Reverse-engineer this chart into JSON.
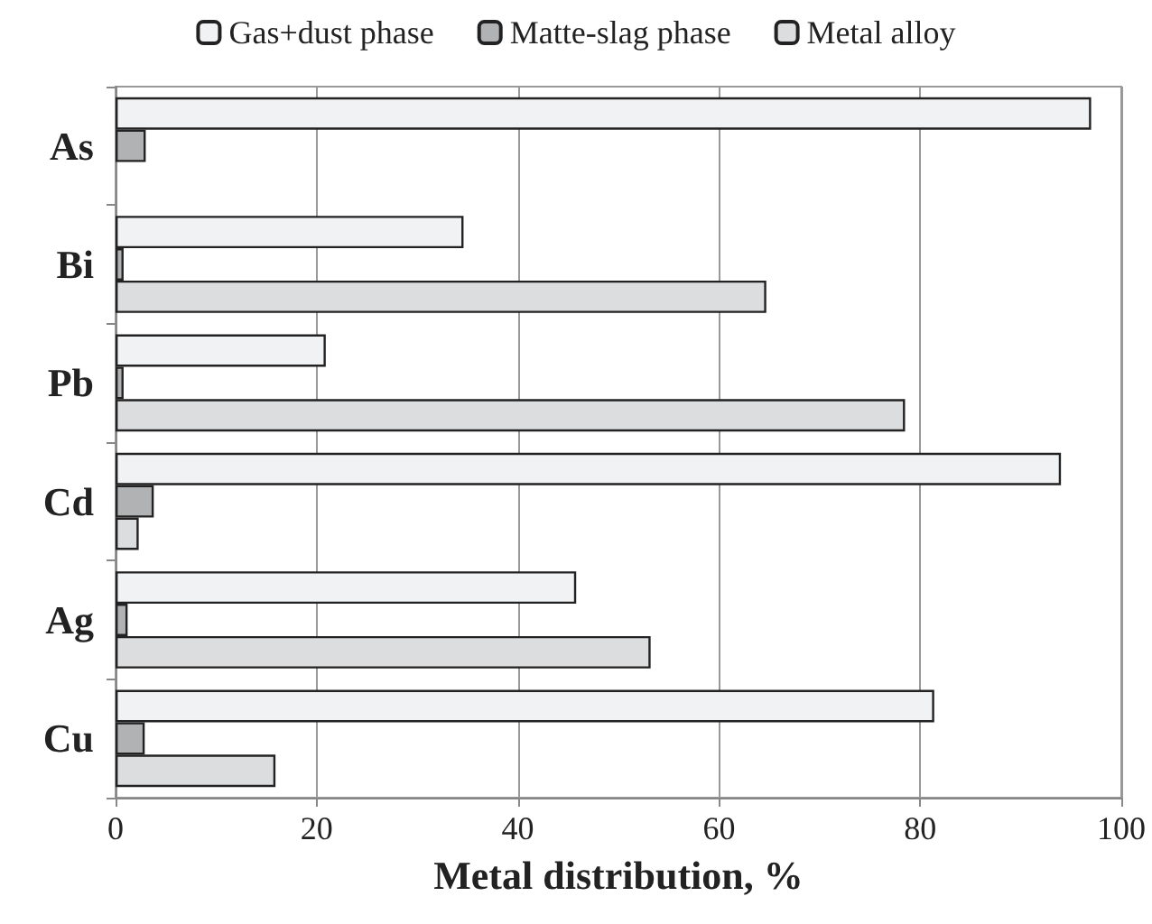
{
  "chart_data": {
    "type": "bar",
    "orientation": "horizontal",
    "categories": [
      "As",
      "Bi",
      "Pb",
      "Cd",
      "Ag",
      "Cu"
    ],
    "series": [
      {
        "name": "Gas+dust phase",
        "color": "#f1f2f3",
        "values": [
          97,
          34.6,
          20.9,
          94,
          45.8,
          81.4
        ]
      },
      {
        "name": "Matte-slag phase",
        "color": "#b1b2b4",
        "values": [
          3,
          0.8,
          0.8,
          3.8,
          1.2,
          2.9
        ]
      },
      {
        "name": "Metal alloy",
        "color": "#dcdddf",
        "values": [
          null,
          64.7,
          78.5,
          2.3,
          53.2,
          15.9
        ]
      }
    ],
    "xlabel": "Metal distribution, %",
    "xlim": [
      0,
      100
    ],
    "xticks": [
      0,
      20,
      40,
      60,
      80,
      100
    ],
    "grid": "x",
    "legend": "top"
  }
}
